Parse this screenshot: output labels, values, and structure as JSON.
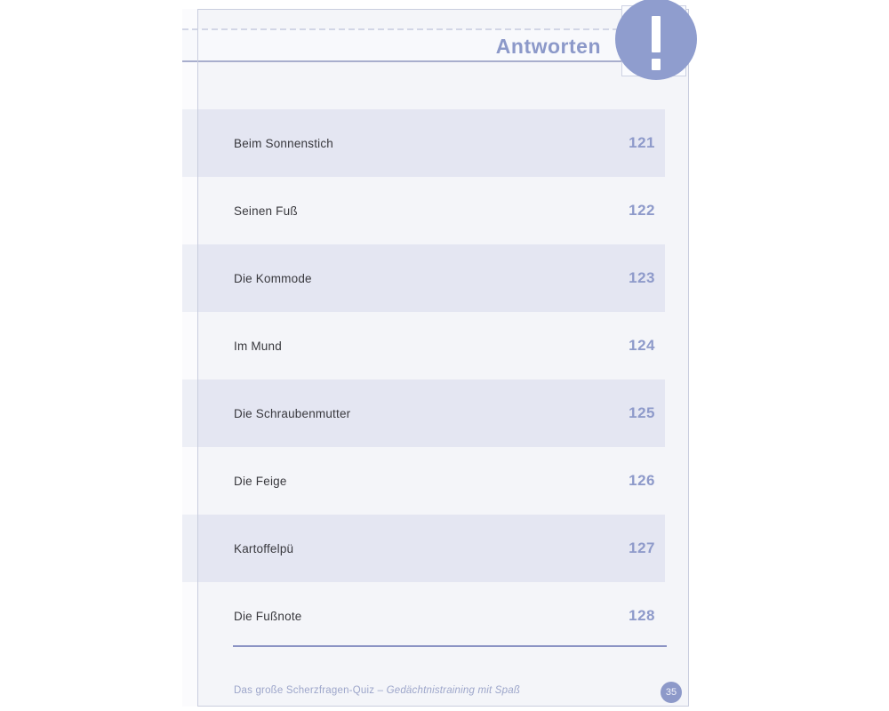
{
  "header": {
    "title": "Antworten",
    "badge_icon": "exclamation-icon"
  },
  "answers": [
    {
      "text": "Beim Sonnenstich",
      "number": "121"
    },
    {
      "text": "Seinen Fuß",
      "number": "122"
    },
    {
      "text": "Die Kommode",
      "number": "123"
    },
    {
      "text": "Im Mund",
      "number": "124"
    },
    {
      "text": "Die Schraubenmutter",
      "number": "125"
    },
    {
      "text": "Die Feige",
      "number": "126"
    },
    {
      "text": "Kartoffelpü",
      "number": "127"
    },
    {
      "text": "Die Fußnote",
      "number": "128"
    }
  ],
  "footer": {
    "book_title": "Das große Scherzfragen-Quiz",
    "separator": "–",
    "subtitle": "Gedächtnistraining mit Spaß",
    "page_number": "35"
  },
  "colors": {
    "accent": "#8e9aca",
    "badge": "#8f9dce",
    "shaded_band": "#e4e6f2",
    "page_background": "#f4f5f9",
    "rule_blue": "#8b93c4",
    "border": "#c9cdde"
  }
}
